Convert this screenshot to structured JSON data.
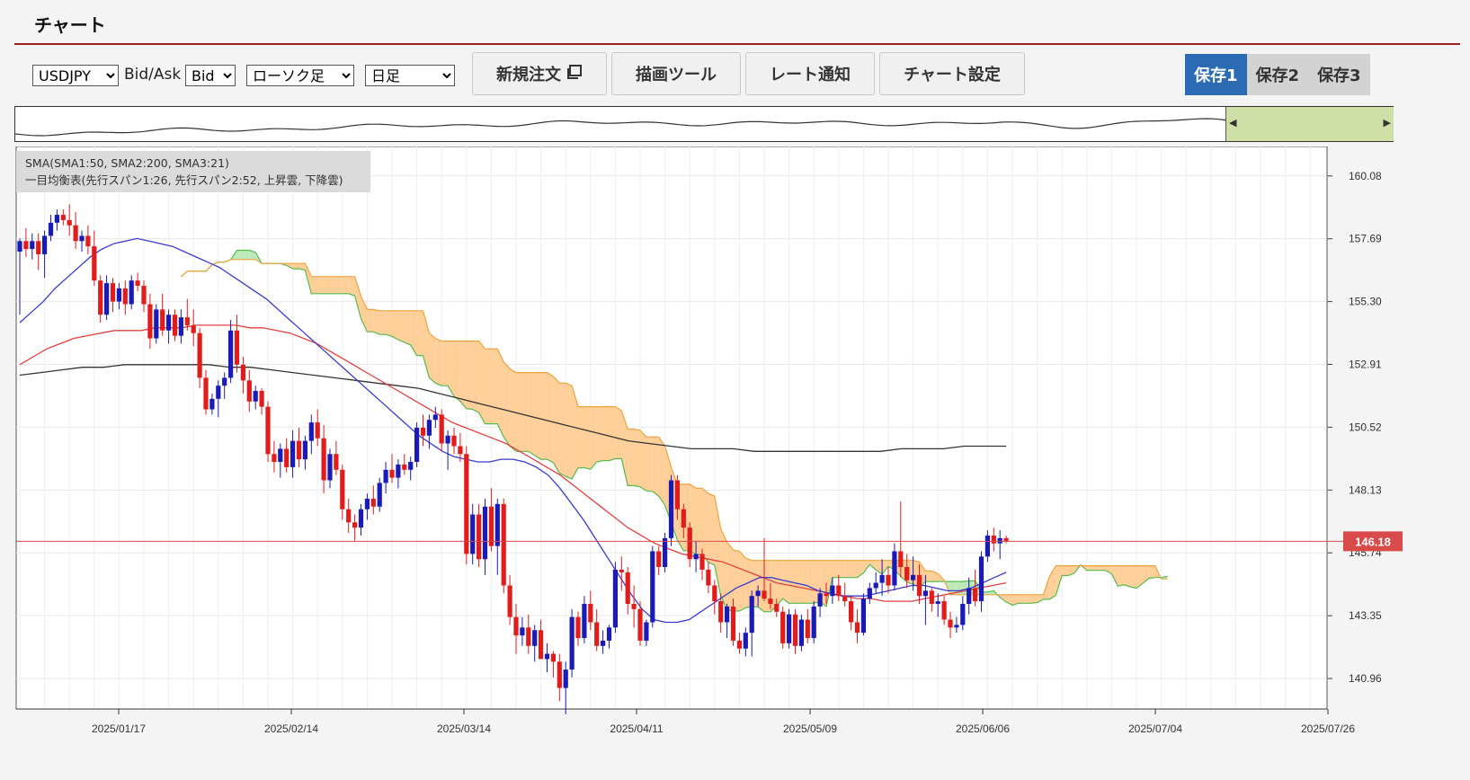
{
  "window": {
    "title": "チャート"
  },
  "toolbar": {
    "symbol": {
      "selected": "USDJPY"
    },
    "bidask_label": "Bid/Ask",
    "price_side": {
      "selected": "Bid"
    },
    "chart_type": {
      "selected": "ローソク足"
    },
    "period": {
      "selected": "日足"
    },
    "buttons": {
      "new_order": "新規注文",
      "drawing_tools": "描画ツール",
      "rate_alert": "レート通知",
      "chart_settings": "チャート設定"
    },
    "saves": [
      "保存1",
      "保存2",
      "保存3"
    ],
    "active_save": 0
  },
  "legend": {
    "line1": "SMA(SMA1:50, SMA2:200, SMA3:21)",
    "line2": "一目均衡表(先行スパン1:26, 先行スパン2:52, 上昇雲, 下降雲)"
  },
  "colors": {
    "up": "#1a1ab8",
    "down": "#e21b1b",
    "sma_short": "#3b3bcf",
    "sma_mid": "#e24040",
    "sma_long": "#333333",
    "cloud_up": "#bde9b9",
    "cloud_down": "#ffcf9a",
    "span1": "#55bb4d",
    "span2": "#f0a23c",
    "current_price": "#d94b4b"
  },
  "chart_data": {
    "type": "candlestick",
    "y_ticks": [
      "160.08",
      "157.69",
      "155.30",
      "152.91",
      "150.52",
      "148.13",
      "145.74",
      "143.35",
      "140.96"
    ],
    "x_ticks": [
      "2025/01/17",
      "2025/02/14",
      "2025/03/14",
      "2025/04/11",
      "2025/05/09",
      "2025/06/06",
      "2025/07/04",
      "2025/07/26"
    ],
    "ylim": [
      139.8,
      161.2
    ],
    "current_price": "146.18",
    "candles": [
      {
        "o": 157.2,
        "h": 157.7,
        "l": 154.8,
        "c": 157.6
      },
      {
        "o": 157.6,
        "h": 158.1,
        "l": 157.0,
        "c": 157.3
      },
      {
        "o": 157.3,
        "h": 157.9,
        "l": 156.9,
        "c": 157.6
      },
      {
        "o": 157.6,
        "h": 157.9,
        "l": 156.5,
        "c": 157.1
      },
      {
        "o": 157.1,
        "h": 158.0,
        "l": 156.2,
        "c": 157.8
      },
      {
        "o": 157.8,
        "h": 158.6,
        "l": 157.6,
        "c": 158.3
      },
      {
        "o": 158.3,
        "h": 158.8,
        "l": 158.0,
        "c": 158.6
      },
      {
        "o": 158.6,
        "h": 158.8,
        "l": 158.2,
        "c": 158.4
      },
      {
        "o": 158.4,
        "h": 159.0,
        "l": 157.8,
        "c": 158.2
      },
      {
        "o": 158.2,
        "h": 158.7,
        "l": 157.3,
        "c": 157.6
      },
      {
        "o": 157.6,
        "h": 158.0,
        "l": 157.2,
        "c": 157.8
      },
      {
        "o": 157.8,
        "h": 158.2,
        "l": 157.1,
        "c": 157.4
      },
      {
        "o": 157.4,
        "h": 158.0,
        "l": 155.9,
        "c": 156.1
      },
      {
        "o": 156.1,
        "h": 156.3,
        "l": 154.5,
        "c": 154.8
      },
      {
        "o": 154.8,
        "h": 156.3,
        "l": 154.6,
        "c": 156.0
      },
      {
        "o": 156.0,
        "h": 156.2,
        "l": 154.9,
        "c": 155.3
      },
      {
        "o": 155.3,
        "h": 156.0,
        "l": 155.0,
        "c": 155.8
      },
      {
        "o": 155.8,
        "h": 156.1,
        "l": 154.8,
        "c": 155.2
      },
      {
        "o": 155.2,
        "h": 156.3,
        "l": 155.0,
        "c": 156.1
      },
      {
        "o": 156.1,
        "h": 156.4,
        "l": 155.7,
        "c": 155.9
      },
      {
        "o": 155.9,
        "h": 156.1,
        "l": 154.9,
        "c": 155.2
      },
      {
        "o": 155.2,
        "h": 155.6,
        "l": 153.5,
        "c": 153.9
      },
      {
        "o": 153.9,
        "h": 155.2,
        "l": 153.7,
        "c": 155.0
      },
      {
        "o": 155.0,
        "h": 155.6,
        "l": 154.0,
        "c": 154.2
      },
      {
        "o": 154.2,
        "h": 155.0,
        "l": 153.7,
        "c": 154.8
      },
      {
        "o": 154.8,
        "h": 155.0,
        "l": 153.8,
        "c": 154.0
      },
      {
        "o": 154.0,
        "h": 155.0,
        "l": 153.7,
        "c": 154.7
      },
      {
        "o": 154.7,
        "h": 155.4,
        "l": 154.2,
        "c": 154.4
      },
      {
        "o": 154.4,
        "h": 155.0,
        "l": 153.6,
        "c": 154.1
      },
      {
        "o": 154.1,
        "h": 154.3,
        "l": 152.0,
        "c": 152.4
      },
      {
        "o": 152.4,
        "h": 152.7,
        "l": 151.0,
        "c": 151.2
      },
      {
        "o": 151.2,
        "h": 151.8,
        "l": 151.0,
        "c": 151.6
      },
      {
        "o": 151.6,
        "h": 152.3,
        "l": 150.9,
        "c": 152.1
      },
      {
        "o": 152.1,
        "h": 152.6,
        "l": 151.6,
        "c": 152.4
      },
      {
        "o": 152.4,
        "h": 154.6,
        "l": 152.2,
        "c": 154.2
      },
      {
        "o": 154.2,
        "h": 154.8,
        "l": 152.6,
        "c": 152.9
      },
      {
        "o": 152.9,
        "h": 153.2,
        "l": 151.8,
        "c": 152.3
      },
      {
        "o": 152.3,
        "h": 152.7,
        "l": 151.1,
        "c": 151.5
      },
      {
        "o": 151.5,
        "h": 152.1,
        "l": 151.2,
        "c": 151.9
      },
      {
        "o": 151.9,
        "h": 152.0,
        "l": 151.0,
        "c": 151.3
      },
      {
        "o": 151.3,
        "h": 151.5,
        "l": 149.2,
        "c": 149.5
      },
      {
        "o": 149.5,
        "h": 150.0,
        "l": 148.8,
        "c": 149.2
      },
      {
        "o": 149.2,
        "h": 149.9,
        "l": 148.6,
        "c": 149.7
      },
      {
        "o": 149.7,
        "h": 150.1,
        "l": 148.8,
        "c": 149.0
      },
      {
        "o": 149.0,
        "h": 150.4,
        "l": 148.6,
        "c": 150.0
      },
      {
        "o": 150.0,
        "h": 150.5,
        "l": 149.0,
        "c": 149.3
      },
      {
        "o": 149.3,
        "h": 150.2,
        "l": 148.9,
        "c": 150.0
      },
      {
        "o": 150.0,
        "h": 151.0,
        "l": 149.5,
        "c": 150.7
      },
      {
        "o": 150.7,
        "h": 151.2,
        "l": 149.8,
        "c": 150.1
      },
      {
        "o": 150.1,
        "h": 150.6,
        "l": 148.0,
        "c": 148.5
      },
      {
        "o": 148.5,
        "h": 149.7,
        "l": 148.2,
        "c": 149.5
      },
      {
        "o": 149.5,
        "h": 150.0,
        "l": 148.7,
        "c": 148.9
      },
      {
        "o": 148.9,
        "h": 149.1,
        "l": 147.0,
        "c": 147.4
      },
      {
        "o": 147.4,
        "h": 147.8,
        "l": 146.5,
        "c": 146.9
      },
      {
        "o": 146.9,
        "h": 147.2,
        "l": 146.2,
        "c": 146.7
      },
      {
        "o": 146.7,
        "h": 147.6,
        "l": 146.4,
        "c": 147.4
      },
      {
        "o": 147.4,
        "h": 148.0,
        "l": 147.0,
        "c": 147.8
      },
      {
        "o": 147.8,
        "h": 148.3,
        "l": 147.2,
        "c": 147.5
      },
      {
        "o": 147.5,
        "h": 148.6,
        "l": 147.3,
        "c": 148.4
      },
      {
        "o": 148.4,
        "h": 149.2,
        "l": 148.0,
        "c": 148.9
      },
      {
        "o": 148.9,
        "h": 149.5,
        "l": 148.4,
        "c": 148.6
      },
      {
        "o": 148.6,
        "h": 149.3,
        "l": 148.2,
        "c": 149.1
      },
      {
        "o": 149.1,
        "h": 149.5,
        "l": 148.7,
        "c": 148.9
      },
      {
        "o": 148.9,
        "h": 149.4,
        "l": 148.5,
        "c": 149.2
      },
      {
        "o": 149.2,
        "h": 150.7,
        "l": 149.0,
        "c": 150.5
      },
      {
        "o": 150.5,
        "h": 151.0,
        "l": 149.8,
        "c": 150.2
      },
      {
        "o": 150.2,
        "h": 151.0,
        "l": 149.7,
        "c": 150.8
      },
      {
        "o": 150.8,
        "h": 151.3,
        "l": 150.5,
        "c": 151.0
      },
      {
        "o": 151.0,
        "h": 151.2,
        "l": 149.6,
        "c": 149.9
      },
      {
        "o": 149.9,
        "h": 150.4,
        "l": 148.9,
        "c": 150.2
      },
      {
        "o": 150.2,
        "h": 150.5,
        "l": 149.5,
        "c": 149.8
      },
      {
        "o": 149.8,
        "h": 150.3,
        "l": 149.2,
        "c": 149.5
      },
      {
        "o": 149.5,
        "h": 149.8,
        "l": 145.3,
        "c": 145.7
      },
      {
        "o": 145.7,
        "h": 147.6,
        "l": 145.3,
        "c": 147.2
      },
      {
        "o": 147.2,
        "h": 147.6,
        "l": 145.2,
        "c": 145.5
      },
      {
        "o": 145.5,
        "h": 147.8,
        "l": 144.9,
        "c": 147.5
      },
      {
        "o": 147.5,
        "h": 148.2,
        "l": 145.8,
        "c": 146.0
      },
      {
        "o": 146.0,
        "h": 147.8,
        "l": 144.9,
        "c": 147.6
      },
      {
        "o": 147.6,
        "h": 147.8,
        "l": 144.2,
        "c": 144.5
      },
      {
        "o": 144.5,
        "h": 144.9,
        "l": 143.0,
        "c": 143.3
      },
      {
        "o": 143.3,
        "h": 143.8,
        "l": 141.9,
        "c": 142.6
      },
      {
        "o": 142.6,
        "h": 143.3,
        "l": 142.2,
        "c": 142.9
      },
      {
        "o": 142.9,
        "h": 143.4,
        "l": 141.9,
        "c": 142.2
      },
      {
        "o": 142.2,
        "h": 143.0,
        "l": 141.6,
        "c": 142.8
      },
      {
        "o": 142.8,
        "h": 143.2,
        "l": 141.9,
        "c": 141.7
      },
      {
        "o": 141.7,
        "h": 142.3,
        "l": 141.2,
        "c": 141.9
      },
      {
        "o": 141.9,
        "h": 142.0,
        "l": 141.0,
        "c": 141.6
      },
      {
        "o": 141.6,
        "h": 141.9,
        "l": 140.1,
        "c": 140.6
      },
      {
        "o": 140.6,
        "h": 141.6,
        "l": 139.6,
        "c": 141.3
      },
      {
        "o": 141.3,
        "h": 143.6,
        "l": 141.0,
        "c": 143.3
      },
      {
        "o": 143.3,
        "h": 143.5,
        "l": 142.2,
        "c": 142.5
      },
      {
        "o": 142.5,
        "h": 144.1,
        "l": 142.3,
        "c": 143.8
      },
      {
        "o": 143.8,
        "h": 144.3,
        "l": 142.8,
        "c": 143.1
      },
      {
        "o": 143.1,
        "h": 143.6,
        "l": 142.0,
        "c": 142.2
      },
      {
        "o": 142.2,
        "h": 142.8,
        "l": 141.9,
        "c": 142.4
      },
      {
        "o": 142.4,
        "h": 143.0,
        "l": 142.1,
        "c": 142.9
      },
      {
        "o": 142.9,
        "h": 145.4,
        "l": 142.7,
        "c": 145.1
      },
      {
        "o": 145.1,
        "h": 145.6,
        "l": 144.3,
        "c": 145.0
      },
      {
        "o": 145.0,
        "h": 145.2,
        "l": 143.4,
        "c": 143.8
      },
      {
        "o": 143.8,
        "h": 144.5,
        "l": 142.9,
        "c": 143.6
      },
      {
        "o": 143.6,
        "h": 143.9,
        "l": 142.2,
        "c": 142.4
      },
      {
        "o": 142.4,
        "h": 143.2,
        "l": 142.2,
        "c": 143.1
      },
      {
        "o": 143.1,
        "h": 146.0,
        "l": 142.9,
        "c": 145.8
      },
      {
        "o": 145.8,
        "h": 146.0,
        "l": 144.9,
        "c": 145.2
      },
      {
        "o": 145.2,
        "h": 146.5,
        "l": 145.0,
        "c": 146.3
      },
      {
        "o": 146.3,
        "h": 148.7,
        "l": 146.0,
        "c": 148.5
      },
      {
        "o": 148.5,
        "h": 148.7,
        "l": 147.0,
        "c": 147.4
      },
      {
        "o": 147.4,
        "h": 147.6,
        "l": 146.3,
        "c": 146.7
      },
      {
        "o": 146.7,
        "h": 146.9,
        "l": 145.2,
        "c": 145.5
      },
      {
        "o": 145.5,
        "h": 146.2,
        "l": 145.0,
        "c": 145.7
      },
      {
        "o": 145.7,
        "h": 145.9,
        "l": 144.7,
        "c": 145.1
      },
      {
        "o": 145.1,
        "h": 145.4,
        "l": 144.2,
        "c": 144.5
      },
      {
        "o": 144.5,
        "h": 144.7,
        "l": 143.4,
        "c": 143.9
      },
      {
        "o": 143.9,
        "h": 144.2,
        "l": 142.7,
        "c": 143.1
      },
      {
        "o": 143.1,
        "h": 143.8,
        "l": 142.5,
        "c": 143.7
      },
      {
        "o": 143.7,
        "h": 144.0,
        "l": 142.2,
        "c": 142.4
      },
      {
        "o": 142.4,
        "h": 142.7,
        "l": 141.9,
        "c": 142.1
      },
      {
        "o": 142.1,
        "h": 142.9,
        "l": 141.8,
        "c": 142.7
      },
      {
        "o": 142.7,
        "h": 144.3,
        "l": 141.8,
        "c": 144.1
      },
      {
        "o": 144.1,
        "h": 144.5,
        "l": 143.7,
        "c": 144.3
      },
      {
        "o": 144.3,
        "h": 146.3,
        "l": 143.9,
        "c": 144.0
      },
      {
        "o": 144.0,
        "h": 144.6,
        "l": 143.6,
        "c": 143.8
      },
      {
        "o": 143.8,
        "h": 144.0,
        "l": 143.3,
        "c": 143.5
      },
      {
        "o": 143.5,
        "h": 143.7,
        "l": 142.1,
        "c": 142.3
      },
      {
        "o": 142.3,
        "h": 143.6,
        "l": 142.1,
        "c": 143.4
      },
      {
        "o": 143.4,
        "h": 143.6,
        "l": 141.9,
        "c": 142.2
      },
      {
        "o": 142.2,
        "h": 143.4,
        "l": 142.0,
        "c": 143.2
      },
      {
        "o": 143.2,
        "h": 143.6,
        "l": 142.3,
        "c": 142.5
      },
      {
        "o": 142.5,
        "h": 143.9,
        "l": 142.3,
        "c": 143.7
      },
      {
        "o": 143.7,
        "h": 144.4,
        "l": 143.3,
        "c": 144.2
      },
      {
        "o": 144.2,
        "h": 144.6,
        "l": 143.8,
        "c": 144.1
      },
      {
        "o": 144.1,
        "h": 144.8,
        "l": 143.8,
        "c": 144.5
      },
      {
        "o": 144.5,
        "h": 144.9,
        "l": 143.9,
        "c": 144.1
      },
      {
        "o": 144.1,
        "h": 144.6,
        "l": 143.7,
        "c": 143.9
      },
      {
        "o": 143.9,
        "h": 144.1,
        "l": 142.8,
        "c": 143.1
      },
      {
        "o": 143.1,
        "h": 143.6,
        "l": 142.3,
        "c": 142.7
      },
      {
        "o": 142.7,
        "h": 144.2,
        "l": 142.6,
        "c": 144.0
      },
      {
        "o": 144.0,
        "h": 144.6,
        "l": 143.8,
        "c": 144.4
      },
      {
        "o": 144.4,
        "h": 145.0,
        "l": 144.2,
        "c": 144.6
      },
      {
        "o": 144.6,
        "h": 145.5,
        "l": 144.1,
        "c": 144.9
      },
      {
        "o": 144.9,
        "h": 145.2,
        "l": 144.2,
        "c": 144.5
      },
      {
        "o": 144.5,
        "h": 146.1,
        "l": 144.3,
        "c": 145.8
      },
      {
        "o": 145.8,
        "h": 147.7,
        "l": 144.8,
        "c": 145.2
      },
      {
        "o": 145.2,
        "h": 145.7,
        "l": 144.4,
        "c": 144.7
      },
      {
        "o": 144.7,
        "h": 145.6,
        "l": 144.3,
        "c": 144.9
      },
      {
        "o": 144.9,
        "h": 145.3,
        "l": 143.8,
        "c": 144.1
      },
      {
        "o": 144.1,
        "h": 144.9,
        "l": 143.0,
        "c": 144.3
      },
      {
        "o": 144.3,
        "h": 144.4,
        "l": 143.5,
        "c": 143.8
      },
      {
        "o": 143.8,
        "h": 144.2,
        "l": 143.3,
        "c": 143.9
      },
      {
        "o": 143.9,
        "h": 144.1,
        "l": 143.0,
        "c": 143.2
      },
      {
        "o": 143.2,
        "h": 143.5,
        "l": 142.5,
        "c": 142.9
      },
      {
        "o": 142.9,
        "h": 143.3,
        "l": 142.7,
        "c": 143.0
      },
      {
        "o": 143.0,
        "h": 144.1,
        "l": 142.8,
        "c": 143.8
      },
      {
        "o": 143.8,
        "h": 144.8,
        "l": 143.4,
        "c": 144.4
      },
      {
        "o": 144.4,
        "h": 145.1,
        "l": 143.7,
        "c": 143.9
      },
      {
        "o": 143.9,
        "h": 145.8,
        "l": 143.5,
        "c": 145.6
      },
      {
        "o": 145.6,
        "h": 146.6,
        "l": 145.4,
        "c": 146.4
      },
      {
        "o": 146.4,
        "h": 146.7,
        "l": 145.8,
        "c": 146.1
      },
      {
        "o": 146.1,
        "h": 146.6,
        "l": 145.5,
        "c": 146.3
      },
      {
        "o": 146.3,
        "h": 146.4,
        "l": 146.1,
        "c": 146.18
      }
    ],
    "sma_21": [
      154.5,
      154.9,
      155.3,
      155.8,
      156.2,
      156.6,
      157.0,
      157.3,
      157.5,
      157.6,
      157.7,
      157.6,
      157.5,
      157.4,
      157.2,
      157.0,
      156.8,
      156.6,
      156.3,
      156.0,
      155.7,
      155.4,
      155.0,
      154.6,
      154.2,
      153.8,
      153.4,
      153.0,
      152.6,
      152.2,
      151.8,
      151.4,
      151.0,
      150.6,
      150.2,
      149.9,
      149.6,
      149.4,
      149.3,
      149.2,
      149.2,
      149.3,
      149.3,
      149.2,
      149.0,
      148.7,
      148.2,
      147.6,
      147.0,
      146.3,
      145.6,
      144.9,
      144.2,
      143.6,
      143.2,
      143.1,
      143.1,
      143.2,
      143.5,
      143.8,
      144.1,
      144.4,
      144.6,
      144.8,
      144.8,
      144.7,
      144.6,
      144.5,
      144.3,
      144.2,
      144.1,
      144.1,
      144.1,
      144.2,
      144.3,
      144.4,
      144.5,
      144.5,
      144.4,
      144.3,
      144.3,
      144.4,
      144.6,
      144.8,
      145.0
    ],
    "sma_50": [
      152.9,
      153.2,
      153.5,
      153.7,
      153.9,
      154.0,
      154.1,
      154.2,
      154.2,
      154.2,
      154.3,
      154.3,
      154.3,
      154.4,
      154.4,
      154.4,
      154.4,
      154.3,
      154.3,
      154.2,
      154.1,
      153.9,
      153.7,
      153.4,
      153.1,
      152.8,
      152.5,
      152.2,
      151.9,
      151.6,
      151.3,
      151.0,
      150.7,
      150.5,
      150.3,
      150.1,
      149.9,
      149.6,
      149.3,
      149.0,
      148.7,
      148.3,
      147.9,
      147.5,
      147.1,
      146.7,
      146.4,
      146.1,
      145.9,
      145.7,
      145.6,
      145.5,
      145.4,
      145.2,
      145.0,
      144.8,
      144.6,
      144.5,
      144.4,
      144.3,
      144.2,
      144.1,
      144.0,
      144.0,
      143.9,
      143.9,
      143.9,
      144.0,
      144.1,
      144.2,
      144.3,
      144.4,
      144.5,
      144.6
    ],
    "sma_200": [
      152.5,
      152.6,
      152.7,
      152.8,
      152.8,
      152.9,
      152.9,
      152.9,
      152.9,
      152.9,
      152.8,
      152.8,
      152.7,
      152.6,
      152.5,
      152.4,
      152.3,
      152.2,
      152.1,
      152.0,
      151.8,
      151.6,
      151.4,
      151.2,
      151.0,
      150.8,
      150.6,
      150.4,
      150.2,
      150.0,
      149.9,
      149.8,
      149.7,
      149.7,
      149.7,
      149.6,
      149.6,
      149.6,
      149.6,
      149.6,
      149.6,
      149.6,
      149.7,
      149.7,
      149.7,
      149.8,
      149.8,
      149.8
    ]
  }
}
